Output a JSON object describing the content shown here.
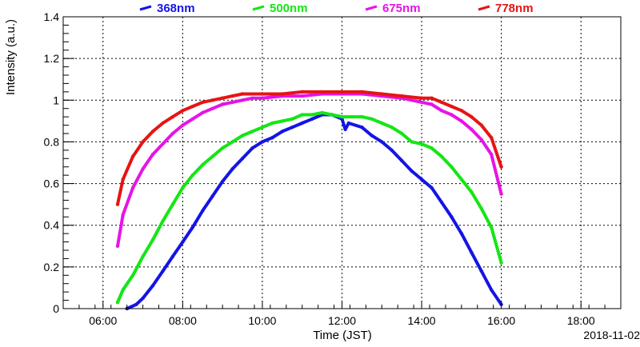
{
  "chart_data": {
    "type": "scatter",
    "xlabel": "Time (JST)",
    "ylabel": "Intensity (a.u.)",
    "date_label": "2018-11-02",
    "xlim": [
      "05:00",
      "19:00"
    ],
    "ylim": [
      0,
      1.4
    ],
    "x_ticks": [
      "06:00",
      "08:00",
      "10:00",
      "12:00",
      "14:00",
      "16:00",
      "18:00"
    ],
    "y_ticks": [
      "0",
      "0.2",
      "0.4",
      "0.6",
      "0.8",
      "1",
      "1.2",
      "1.4"
    ],
    "grid": true,
    "legend_position": "top",
    "series": [
      {
        "name": "368nm",
        "color": "#1414e6",
        "points": [
          [
            "06:36",
            0.0
          ],
          [
            "06:50",
            0.02
          ],
          [
            "07:00",
            0.05
          ],
          [
            "07:15",
            0.11
          ],
          [
            "07:30",
            0.18
          ],
          [
            "07:45",
            0.25
          ],
          [
            "08:00",
            0.32
          ],
          [
            "08:15",
            0.39
          ],
          [
            "08:30",
            0.47
          ],
          [
            "08:45",
            0.54
          ],
          [
            "09:00",
            0.61
          ],
          [
            "09:15",
            0.67
          ],
          [
            "09:30",
            0.72
          ],
          [
            "09:45",
            0.77
          ],
          [
            "10:00",
            0.8
          ],
          [
            "10:15",
            0.82
          ],
          [
            "10:30",
            0.85
          ],
          [
            "10:45",
            0.87
          ],
          [
            "11:00",
            0.89
          ],
          [
            "11:15",
            0.91
          ],
          [
            "11:30",
            0.93
          ],
          [
            "11:45",
            0.93
          ],
          [
            "12:00",
            0.91
          ],
          [
            "12:05",
            0.86
          ],
          [
            "12:10",
            0.89
          ],
          [
            "12:30",
            0.87
          ],
          [
            "12:45",
            0.83
          ],
          [
            "13:00",
            0.8
          ],
          [
            "13:15",
            0.76
          ],
          [
            "13:30",
            0.71
          ],
          [
            "13:45",
            0.66
          ],
          [
            "14:00",
            0.62
          ],
          [
            "14:15",
            0.58
          ],
          [
            "14:30",
            0.51
          ],
          [
            "14:45",
            0.44
          ],
          [
            "15:00",
            0.36
          ],
          [
            "15:15",
            0.27
          ],
          [
            "15:30",
            0.18
          ],
          [
            "15:45",
            0.09
          ],
          [
            "16:00",
            0.02
          ]
        ]
      },
      {
        "name": "500nm",
        "color": "#14e614",
        "points": [
          [
            "06:22",
            0.03
          ],
          [
            "06:30",
            0.09
          ],
          [
            "06:45",
            0.16
          ],
          [
            "07:00",
            0.25
          ],
          [
            "07:15",
            0.33
          ],
          [
            "07:30",
            0.42
          ],
          [
            "07:45",
            0.5
          ],
          [
            "08:00",
            0.58
          ],
          [
            "08:15",
            0.64
          ],
          [
            "08:30",
            0.69
          ],
          [
            "08:45",
            0.73
          ],
          [
            "09:00",
            0.77
          ],
          [
            "09:15",
            0.8
          ],
          [
            "09:30",
            0.83
          ],
          [
            "09:45",
            0.85
          ],
          [
            "10:00",
            0.87
          ],
          [
            "10:15",
            0.89
          ],
          [
            "10:30",
            0.9
          ],
          [
            "10:45",
            0.91
          ],
          [
            "11:00",
            0.93
          ],
          [
            "11:15",
            0.93
          ],
          [
            "11:30",
            0.94
          ],
          [
            "11:45",
            0.93
          ],
          [
            "12:00",
            0.92
          ],
          [
            "12:15",
            0.92
          ],
          [
            "12:30",
            0.92
          ],
          [
            "12:45",
            0.91
          ],
          [
            "13:00",
            0.89
          ],
          [
            "13:15",
            0.87
          ],
          [
            "13:30",
            0.84
          ],
          [
            "13:45",
            0.8
          ],
          [
            "14:00",
            0.79
          ],
          [
            "14:15",
            0.77
          ],
          [
            "14:30",
            0.73
          ],
          [
            "14:45",
            0.68
          ],
          [
            "15:00",
            0.62
          ],
          [
            "15:15",
            0.56
          ],
          [
            "15:30",
            0.48
          ],
          [
            "15:45",
            0.39
          ],
          [
            "16:00",
            0.22
          ]
        ]
      },
      {
        "name": "675nm",
        "color": "#e614e6",
        "points": [
          [
            "06:22",
            0.3
          ],
          [
            "06:30",
            0.45
          ],
          [
            "06:45",
            0.58
          ],
          [
            "07:00",
            0.67
          ],
          [
            "07:15",
            0.74
          ],
          [
            "07:30",
            0.79
          ],
          [
            "07:45",
            0.84
          ],
          [
            "08:00",
            0.88
          ],
          [
            "08:15",
            0.91
          ],
          [
            "08:30",
            0.94
          ],
          [
            "08:45",
            0.96
          ],
          [
            "09:00",
            0.98
          ],
          [
            "09:15",
            0.99
          ],
          [
            "09:30",
            1.0
          ],
          [
            "09:45",
            1.01
          ],
          [
            "10:00",
            1.01
          ],
          [
            "10:30",
            1.02
          ],
          [
            "11:00",
            1.02
          ],
          [
            "11:30",
            1.03
          ],
          [
            "12:00",
            1.03
          ],
          [
            "12:30",
            1.03
          ],
          [
            "13:00",
            1.02
          ],
          [
            "13:30",
            1.01
          ],
          [
            "14:00",
            0.99
          ],
          [
            "14:15",
            0.98
          ],
          [
            "14:30",
            0.95
          ],
          [
            "14:45",
            0.93
          ],
          [
            "15:00",
            0.9
          ],
          [
            "15:15",
            0.86
          ],
          [
            "15:30",
            0.81
          ],
          [
            "15:45",
            0.74
          ],
          [
            "16:00",
            0.55
          ]
        ]
      },
      {
        "name": "778nm",
        "color": "#e61414",
        "points": [
          [
            "06:22",
            0.5
          ],
          [
            "06:30",
            0.62
          ],
          [
            "06:45",
            0.73
          ],
          [
            "07:00",
            0.8
          ],
          [
            "07:15",
            0.85
          ],
          [
            "07:30",
            0.89
          ],
          [
            "07:45",
            0.92
          ],
          [
            "08:00",
            0.95
          ],
          [
            "08:15",
            0.97
          ],
          [
            "08:30",
            0.99
          ],
          [
            "08:45",
            1.0
          ],
          [
            "09:00",
            1.01
          ],
          [
            "09:15",
            1.02
          ],
          [
            "09:30",
            1.03
          ],
          [
            "10:00",
            1.03
          ],
          [
            "10:30",
            1.03
          ],
          [
            "11:00",
            1.04
          ],
          [
            "11:30",
            1.04
          ],
          [
            "12:00",
            1.04
          ],
          [
            "12:30",
            1.04
          ],
          [
            "13:00",
            1.03
          ],
          [
            "13:30",
            1.02
          ],
          [
            "14:00",
            1.01
          ],
          [
            "14:15",
            1.01
          ],
          [
            "14:30",
            0.99
          ],
          [
            "14:45",
            0.97
          ],
          [
            "15:00",
            0.95
          ],
          [
            "15:15",
            0.92
          ],
          [
            "15:30",
            0.88
          ],
          [
            "15:45",
            0.82
          ],
          [
            "16:00",
            0.68
          ]
        ]
      }
    ]
  }
}
